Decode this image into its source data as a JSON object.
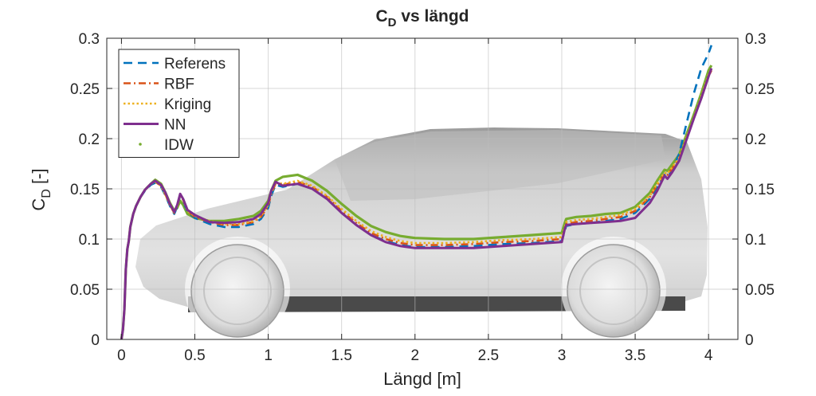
{
  "chart_data": {
    "type": "line",
    "title": "C",
    "title_sub": "D",
    "title_rest": " vs längd",
    "xlabel": "Längd [m]",
    "ylabel_main": "C",
    "ylabel_sub": "D",
    "ylabel_rest": " [-]",
    "xlim": [
      -0.1,
      4.2
    ],
    "ylim": [
      0,
      0.3
    ],
    "xticks": [
      "0",
      "0.5",
      "1",
      "1.5",
      "2",
      "2.5",
      "3",
      "3.5",
      "4"
    ],
    "yticks": [
      "0",
      "0.05",
      "0.1",
      "0.15",
      "0.2",
      "0.25",
      "0.3"
    ],
    "grid": true,
    "legend_position": "top-left",
    "background_image": "car-side-silhouette",
    "series": [
      {
        "name": "Referens",
        "style": "dashed",
        "color": "#0072BD",
        "x": [
          0,
          0.01,
          0.02,
          0.03,
          0.04,
          0.05,
          0.06,
          0.08,
          0.1,
          0.13,
          0.16,
          0.2,
          0.23,
          0.27,
          0.3,
          0.33,
          0.36,
          0.38,
          0.4,
          0.42,
          0.45,
          0.5,
          0.6,
          0.7,
          0.8,
          0.9,
          0.95,
          1.0,
          1.02,
          1.05,
          1.1,
          1.2,
          1.3,
          1.4,
          1.5,
          1.6,
          1.7,
          1.8,
          1.9,
          2.0,
          2.2,
          2.4,
          2.6,
          2.8,
          3.0,
          3.02,
          3.03,
          3.1,
          3.2,
          3.3,
          3.4,
          3.5,
          3.6,
          3.65,
          3.7,
          3.72,
          3.75,
          3.8,
          3.85,
          3.9,
          3.95,
          4.0,
          4.02
        ],
        "y": [
          0.0,
          0.01,
          0.03,
          0.07,
          0.09,
          0.098,
          0.112,
          0.125,
          0.133,
          0.142,
          0.148,
          0.154,
          0.156,
          0.152,
          0.143,
          0.133,
          0.125,
          0.132,
          0.143,
          0.138,
          0.127,
          0.121,
          0.115,
          0.112,
          0.112,
          0.115,
          0.12,
          0.131,
          0.143,
          0.154,
          0.152,
          0.155,
          0.15,
          0.14,
          0.126,
          0.114,
          0.104,
          0.098,
          0.094,
          0.092,
          0.092,
          0.093,
          0.095,
          0.096,
          0.098,
          0.108,
          0.113,
          0.115,
          0.116,
          0.118,
          0.12,
          0.126,
          0.14,
          0.152,
          0.164,
          0.162,
          0.168,
          0.185,
          0.215,
          0.245,
          0.27,
          0.285,
          0.293
        ]
      },
      {
        "name": "RBF",
        "style": "dashdot",
        "color": "#D95319",
        "x": [
          0,
          0.01,
          0.02,
          0.03,
          0.04,
          0.05,
          0.06,
          0.08,
          0.1,
          0.13,
          0.16,
          0.2,
          0.23,
          0.27,
          0.3,
          0.33,
          0.36,
          0.38,
          0.4,
          0.42,
          0.45,
          0.5,
          0.6,
          0.7,
          0.8,
          0.9,
          0.95,
          1.0,
          1.02,
          1.05,
          1.1,
          1.2,
          1.3,
          1.4,
          1.5,
          1.6,
          1.7,
          1.8,
          1.9,
          2.0,
          2.2,
          2.4,
          2.6,
          2.8,
          3.0,
          3.02,
          3.03,
          3.1,
          3.2,
          3.3,
          3.4,
          3.5,
          3.6,
          3.65,
          3.7,
          3.72,
          3.75,
          3.8,
          3.85,
          3.9,
          3.95,
          4.0,
          4.02
        ],
        "y": [
          0.0,
          0.01,
          0.03,
          0.07,
          0.09,
          0.098,
          0.112,
          0.125,
          0.133,
          0.142,
          0.149,
          0.155,
          0.157,
          0.153,
          0.144,
          0.134,
          0.126,
          0.133,
          0.144,
          0.139,
          0.128,
          0.122,
          0.117,
          0.114,
          0.114,
          0.117,
          0.122,
          0.133,
          0.145,
          0.155,
          0.154,
          0.157,
          0.152,
          0.142,
          0.128,
          0.116,
          0.106,
          0.1,
          0.096,
          0.094,
          0.094,
          0.095,
          0.097,
          0.098,
          0.1,
          0.11,
          0.115,
          0.117,
          0.118,
          0.12,
          0.122,
          0.128,
          0.142,
          0.154,
          0.165,
          0.164,
          0.17,
          0.18,
          0.2,
          0.22,
          0.24,
          0.262,
          0.268
        ]
      },
      {
        "name": "Kriging",
        "style": "dotted",
        "color": "#EDB120",
        "x": [
          0,
          0.01,
          0.02,
          0.03,
          0.04,
          0.05,
          0.06,
          0.08,
          0.1,
          0.13,
          0.16,
          0.2,
          0.23,
          0.27,
          0.3,
          0.33,
          0.36,
          0.38,
          0.4,
          0.42,
          0.45,
          0.5,
          0.6,
          0.7,
          0.8,
          0.9,
          0.95,
          1.0,
          1.02,
          1.05,
          1.1,
          1.2,
          1.3,
          1.4,
          1.5,
          1.6,
          1.7,
          1.8,
          1.9,
          2.0,
          2.2,
          2.4,
          2.6,
          2.8,
          3.0,
          3.02,
          3.03,
          3.1,
          3.2,
          3.3,
          3.4,
          3.5,
          3.6,
          3.65,
          3.7,
          3.72,
          3.75,
          3.8,
          3.85,
          3.9,
          3.95,
          4.0,
          4.02
        ],
        "y": [
          0.0,
          0.01,
          0.03,
          0.07,
          0.09,
          0.098,
          0.112,
          0.125,
          0.133,
          0.142,
          0.149,
          0.155,
          0.157,
          0.153,
          0.144,
          0.134,
          0.126,
          0.133,
          0.144,
          0.139,
          0.128,
          0.123,
          0.118,
          0.115,
          0.115,
          0.118,
          0.123,
          0.134,
          0.146,
          0.156,
          0.155,
          0.158,
          0.153,
          0.143,
          0.13,
          0.118,
          0.108,
          0.102,
          0.098,
          0.096,
          0.096,
          0.097,
          0.099,
          0.1,
          0.102,
          0.112,
          0.117,
          0.119,
          0.12,
          0.122,
          0.124,
          0.13,
          0.143,
          0.155,
          0.166,
          0.165,
          0.171,
          0.181,
          0.201,
          0.221,
          0.242,
          0.264,
          0.27
        ]
      },
      {
        "name": "NN",
        "style": "solid",
        "color": "#7E2F8E",
        "x": [
          0,
          0.01,
          0.02,
          0.03,
          0.04,
          0.05,
          0.06,
          0.08,
          0.1,
          0.13,
          0.16,
          0.2,
          0.23,
          0.27,
          0.3,
          0.33,
          0.36,
          0.38,
          0.4,
          0.42,
          0.45,
          0.5,
          0.6,
          0.7,
          0.8,
          0.9,
          0.95,
          1.0,
          1.02,
          1.05,
          1.1,
          1.2,
          1.3,
          1.4,
          1.5,
          1.6,
          1.7,
          1.8,
          1.9,
          2.0,
          2.2,
          2.4,
          2.6,
          2.8,
          3.0,
          3.02,
          3.03,
          3.1,
          3.2,
          3.3,
          3.4,
          3.5,
          3.6,
          3.65,
          3.7,
          3.72,
          3.75,
          3.8,
          3.85,
          3.9,
          3.95,
          4.0,
          4.02
        ],
        "y": [
          0.0,
          0.01,
          0.03,
          0.07,
          0.09,
          0.098,
          0.112,
          0.125,
          0.133,
          0.142,
          0.149,
          0.155,
          0.158,
          0.154,
          0.146,
          0.135,
          0.127,
          0.134,
          0.145,
          0.14,
          0.129,
          0.124,
          0.117,
          0.116,
          0.117,
          0.12,
          0.125,
          0.136,
          0.148,
          0.157,
          0.153,
          0.155,
          0.15,
          0.14,
          0.126,
          0.114,
          0.104,
          0.097,
          0.093,
          0.091,
          0.091,
          0.091,
          0.093,
          0.095,
          0.097,
          0.11,
          0.114,
          0.115,
          0.116,
          0.117,
          0.118,
          0.121,
          0.136,
          0.148,
          0.163,
          0.16,
          0.166,
          0.178,
          0.199,
          0.22,
          0.24,
          0.262,
          0.27
        ]
      },
      {
        "name": "IDW",
        "style": "markers",
        "color": "#77AC30",
        "x": [
          0,
          0.01,
          0.02,
          0.03,
          0.04,
          0.05,
          0.06,
          0.08,
          0.1,
          0.13,
          0.16,
          0.2,
          0.23,
          0.27,
          0.3,
          0.33,
          0.36,
          0.38,
          0.4,
          0.42,
          0.45,
          0.5,
          0.6,
          0.7,
          0.8,
          0.9,
          0.95,
          1.0,
          1.02,
          1.05,
          1.1,
          1.2,
          1.3,
          1.4,
          1.5,
          1.6,
          1.7,
          1.8,
          1.9,
          2.0,
          2.2,
          2.4,
          2.6,
          2.8,
          3.0,
          3.02,
          3.03,
          3.1,
          3.2,
          3.3,
          3.4,
          3.5,
          3.6,
          3.65,
          3.7,
          3.72,
          3.75,
          3.8,
          3.85,
          3.9,
          3.95,
          4.0,
          4.02
        ],
        "y": [
          0.0,
          0.01,
          0.03,
          0.07,
          0.09,
          0.098,
          0.112,
          0.125,
          0.133,
          0.142,
          0.149,
          0.155,
          0.159,
          0.155,
          0.146,
          0.136,
          0.128,
          0.131,
          0.138,
          0.134,
          0.125,
          0.121,
          0.118,
          0.118,
          0.12,
          0.123,
          0.128,
          0.138,
          0.148,
          0.158,
          0.162,
          0.164,
          0.158,
          0.148,
          0.135,
          0.123,
          0.113,
          0.107,
          0.103,
          0.101,
          0.1,
          0.1,
          0.102,
          0.104,
          0.106,
          0.116,
          0.12,
          0.122,
          0.123,
          0.125,
          0.126,
          0.132,
          0.146,
          0.158,
          0.169,
          0.168,
          0.174,
          0.184,
          0.204,
          0.224,
          0.245,
          0.268,
          0.273
        ]
      }
    ]
  }
}
